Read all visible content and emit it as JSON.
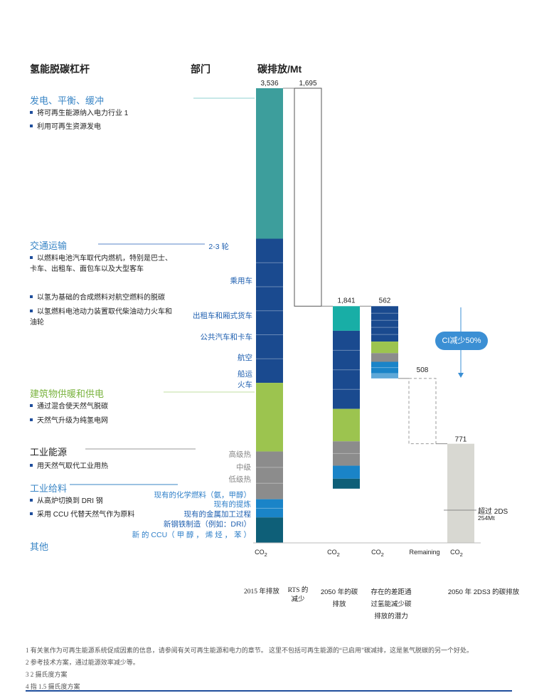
{
  "headers": {
    "lever": "氢能脱碳杠杆",
    "sector": "部门",
    "emission": "碳排放/Mt"
  },
  "sections": [
    {
      "title": "发电、平衡、缓冲",
      "bullets": [
        "将可再生能源纳入电力行业 1",
        "利用可再生资源发电"
      ]
    },
    {
      "title": "交通运输",
      "bullets": [
        "以燃料电池汽车取代内燃机，特别是巴士、卡车、出租车、面包车以及大型客车",
        "以氢为基础的合成燃料对航空燃料的脱碳",
        "以氢燃料电池动力装置取代柴油动力火车和油轮"
      ]
    },
    {
      "title": "建筑物供暖和供电",
      "bullets": [
        "通过混合使天然气脱碳",
        "天然气升级为纯氢电网"
      ]
    },
    {
      "title": "工业能源",
      "bullets": [
        "用天然气取代工业用热"
      ]
    },
    {
      "title": "工业给料",
      "bullets": [
        "从高炉切换到 DRI 钢",
        "采用 CCU 代替天然气作为原料"
      ]
    },
    {
      "title": "其他",
      "bullets": []
    }
  ],
  "row_labels": {
    "two_three_wheel": "2-3 轮",
    "passenger_car": "乘用车",
    "taxi_van": "出租车和厢式货车",
    "bus_truck": "公共汽车和卡车",
    "aviation": "航空",
    "shipping": "船运",
    "rail": "火车",
    "high_heat": "高级热",
    "mid_heat": "中级",
    "low_heat": "低级热",
    "existing_chem": "现有的化学燃料（氨，甲醇）",
    "existing_refining": "现有的提炼",
    "existing_metal": "现有的金属加工过程",
    "new_steel": "新钢铁制造（例如：DRI）",
    "new_ccu": "新 的 CCU（ 甲 醇 ， 烯 烃 ， 苯 ）"
  },
  "annotations": {
    "ci_reduction": "CI减少50%",
    "beyond_2ds": "超过 2DS",
    "beyond_2ds_value": "254Mt"
  },
  "chart_data": {
    "type": "bar",
    "subtype": "waterfall",
    "ylabel": "碳排放/Mt",
    "columns": [
      {
        "axis_label": "CO₂",
        "category": "2015 年排放",
        "value": 3536,
        "value_label": "3,536"
      },
      {
        "axis_label": "",
        "category": "RTS 的减少",
        "value": 1695,
        "value_label": "1,695"
      },
      {
        "axis_label": "CO₂",
        "category": "2050 年的碳排放",
        "value": 1841,
        "value_label": "1,841"
      },
      {
        "axis_label": "CO₂",
        "category": "存在的差距通过氢能减少碳排放的潜力",
        "value": 562,
        "value_label": "562"
      },
      {
        "axis_label": "Remaining",
        "category": "",
        "value": 508,
        "value_label": "508"
      },
      {
        "axis_label": "CO₂",
        "category": "2050 年 2DS3 的碳排放",
        "value": 771,
        "value_label": "771"
      }
    ]
  },
  "footnotes": [
    "1 有关氢作为可再生能源系统促成因素的信息，请参阅有关可再生能源和电力的章节。 这里不包括可再生能源的“已启用”碳减排，这是氢气脱碳的另一个好处。",
    "2 参考技术方案，通过能源效率减少等。",
    "3 2 摄氏度方案",
    "4 指 1.5 摄氏度方案"
  ],
  "colors": {
    "teal": "#3d9e9c",
    "navy": "#1a4a8f",
    "green": "#9cc44f",
    "grey": "#8c8c8c",
    "blue": "#1a84c8",
    "darkteal": "#0e5f78",
    "lightgrey": "#d8d8d2",
    "bright_teal": "#18aea6"
  }
}
